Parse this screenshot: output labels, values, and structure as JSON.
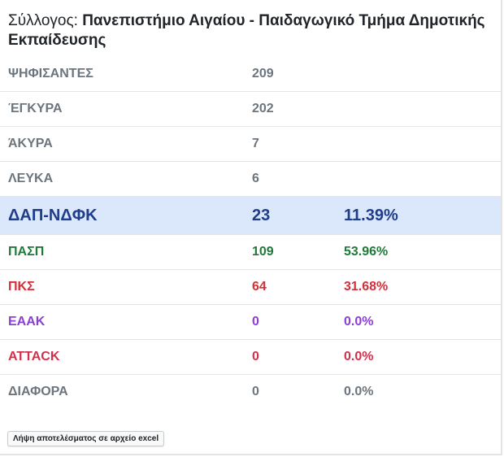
{
  "header": {
    "label": "Σύλλογος:",
    "name": "Πανεπιστήμιο Αιγαίου - Παιδαγωγικό Τμήμα Δημοτικής Εκπαίδευσης"
  },
  "stats": [
    {
      "label": "ΨΗΦΙΣΑΝΤΕΣ",
      "value": "209"
    },
    {
      "label": "ΈΓΚΥΡΑ",
      "value": "202"
    },
    {
      "label": "ΆΚΥΡΑ",
      "value": "7"
    },
    {
      "label": "ΛΕΥΚΑ",
      "value": "6"
    }
  ],
  "parties": [
    {
      "name": "ΔΑΠ-ΝΔΦΚ",
      "votes": "23",
      "percent": "11.39%",
      "color": "#1f3d8a",
      "highlighted": true
    },
    {
      "name": "ΠΑΣΠ",
      "votes": "109",
      "percent": "53.96%",
      "color": "#1f7a3a"
    },
    {
      "name": "ΠΚΣ",
      "votes": "64",
      "percent": "31.68%",
      "color": "#d32f3a"
    },
    {
      "name": "ΕΑΑΚ",
      "votes": "0",
      "percent": "0.0%",
      "color": "#8a3fd6"
    },
    {
      "name": "ATTACK",
      "votes": "0",
      "percent": "0.0%",
      "color": "#d32f4d"
    },
    {
      "name": "ΔΙΑΦΟΡΑ",
      "votes": "0",
      "percent": "0.0%",
      "color": "#6c757d"
    }
  ],
  "actions": {
    "excel_label": "Λήψη αποτελέσματος σε αρχείο excel"
  }
}
